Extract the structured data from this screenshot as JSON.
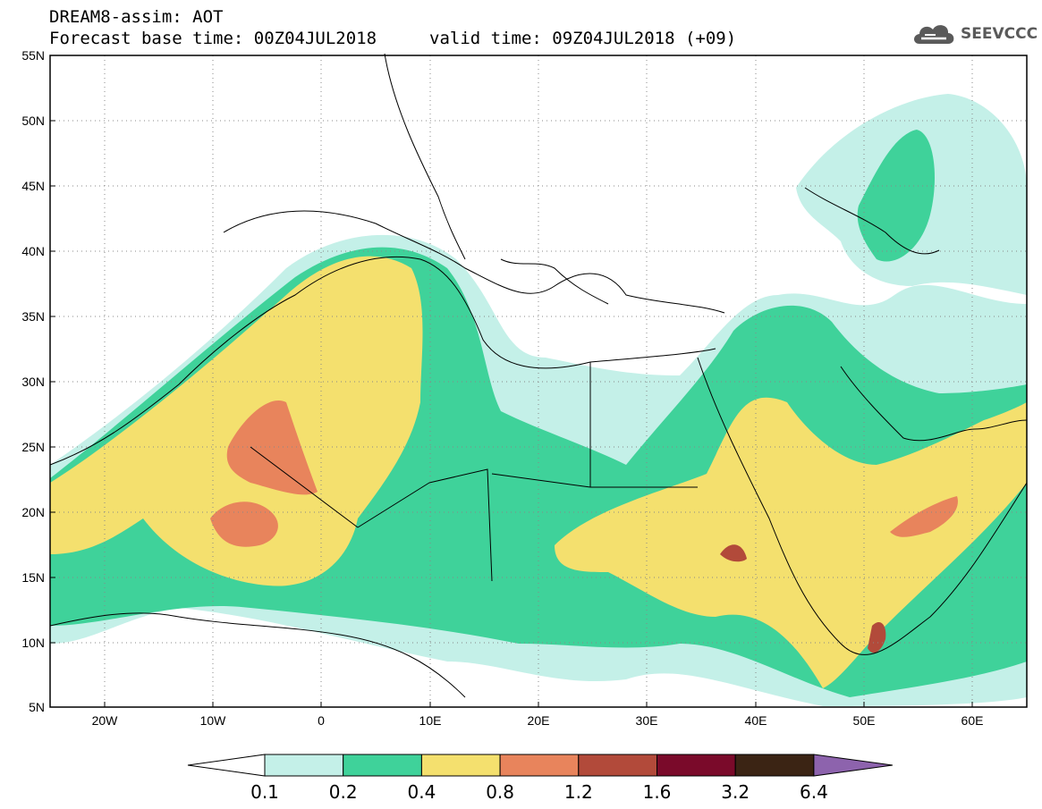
{
  "header": {
    "title": "DREAM8-assim: AOT",
    "base_time": "Forecast base time: 00Z04JUL2018",
    "valid_time": "valid time: 09Z04JUL2018 (+09)"
  },
  "logo": {
    "text": "SEEVCCC",
    "icon": "cloud-icon",
    "color": "#5a5a5a"
  },
  "map": {
    "latitude_labels": [
      "55N",
      "50N",
      "45N",
      "40N",
      "35N",
      "30N",
      "25N",
      "20N",
      "15N",
      "10N",
      "5N"
    ],
    "longitude_labels": [
      "20W",
      "10W",
      "0",
      "10E",
      "20E",
      "30E",
      "40E",
      "50E",
      "60E"
    ],
    "extent": {
      "lon_min": -25,
      "lon_max": 65,
      "lat_min": 5,
      "lat_max": 55
    },
    "gridlines": true,
    "variable": "Aerosol optical thickness"
  },
  "legend": {
    "levels": [
      "0.1",
      "0.2",
      "0.4",
      "0.8",
      "1.2",
      "1.6",
      "3.2",
      "6.4"
    ],
    "colors": [
      "#c4f0e8",
      "#3fd29a",
      "#f4e06e",
      "#e8845c",
      "#b24a3a",
      "#7a0a2a",
      "#3b2414",
      "#8d63ad"
    ],
    "under_color": "#ffffff"
  }
}
